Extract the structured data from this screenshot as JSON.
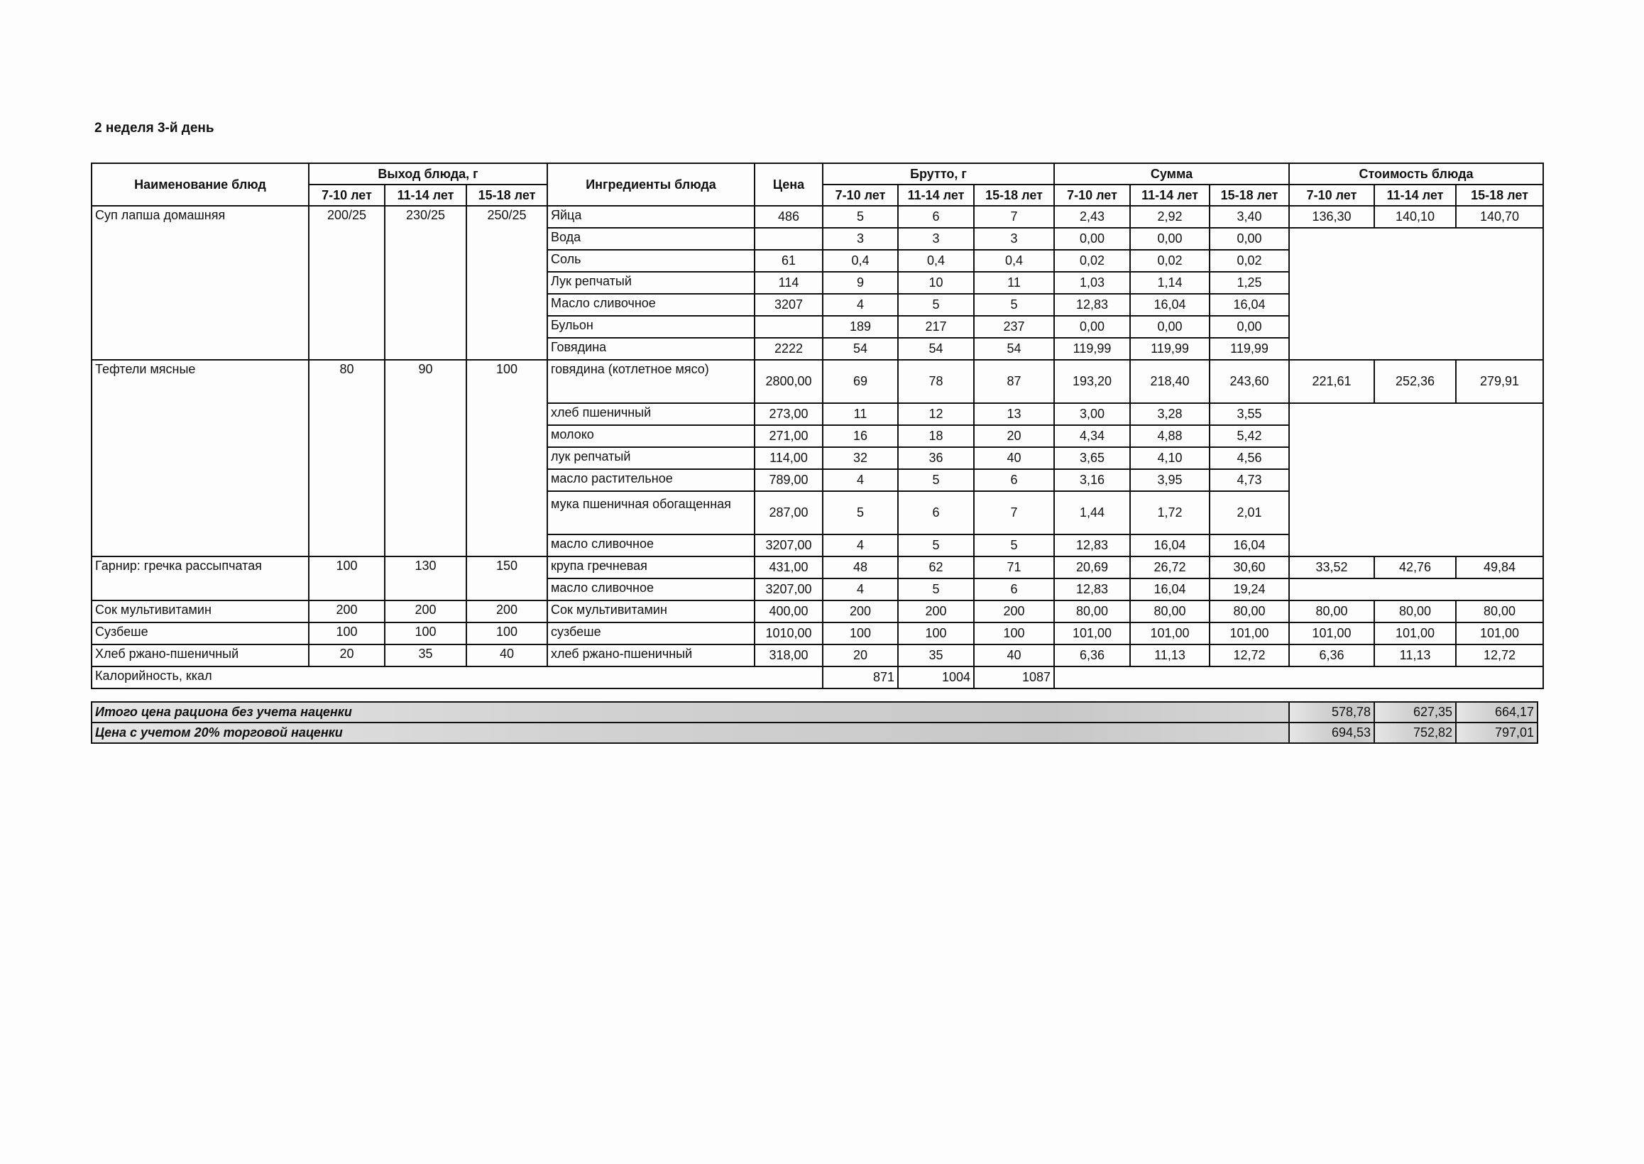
{
  "title": "2 неделя 3-й день",
  "headers": {
    "dish": "Наименование блюд",
    "yield": "Выход блюда, г",
    "ingredients": "Ингредиенты блюда",
    "price": "Цена",
    "brutto": "Брутто, г",
    "sum": "Сумма",
    "cost": "Стоимость блюда",
    "ages": [
      "7-10 лет",
      "11-14 лет",
      "15-18 лет"
    ]
  },
  "dishes": [
    {
      "name": "Суп лапша домашняя",
      "yields": [
        "200/25",
        "230/25",
        "250/25"
      ],
      "cost": [
        "136,30",
        "140,10",
        "140,70"
      ],
      "ingredients": [
        {
          "name": "Яйца",
          "price": "486",
          "brutto": [
            "5",
            "6",
            "7"
          ],
          "sum": [
            "2,43",
            "2,92",
            "3,40"
          ]
        },
        {
          "name": "Вода",
          "price": "",
          "brutto": [
            "3",
            "3",
            "3"
          ],
          "sum": [
            "0,00",
            "0,00",
            "0,00"
          ]
        },
        {
          "name": "Соль",
          "price": "61",
          "brutto": [
            "0,4",
            "0,4",
            "0,4"
          ],
          "sum": [
            "0,02",
            "0,02",
            "0,02"
          ]
        },
        {
          "name": "Лук репчатый",
          "price": "114",
          "brutto": [
            "9",
            "10",
            "11"
          ],
          "sum": [
            "1,03",
            "1,14",
            "1,25"
          ]
        },
        {
          "name": "Масло сливочное",
          "price": "3207",
          "brutto": [
            "4",
            "5",
            "5"
          ],
          "sum": [
            "12,83",
            "16,04",
            "16,04"
          ]
        },
        {
          "name": "Бульон",
          "price": "",
          "brutto": [
            "189",
            "217",
            "237"
          ],
          "sum": [
            "0,00",
            "0,00",
            "0,00"
          ]
        },
        {
          "name": "Говядина",
          "price": "2222",
          "brutto": [
            "54",
            "54",
            "54"
          ],
          "sum": [
            "119,99",
            "119,99",
            "119,99"
          ]
        }
      ]
    },
    {
      "name": "Тефтели мясные",
      "yields": [
        "80",
        "90",
        "100"
      ],
      "cost": [
        "221,61",
        "252,36",
        "279,91"
      ],
      "ingredients": [
        {
          "name": "говядина (котлетное мясо)",
          "price": "2800,00",
          "brutto": [
            "69",
            "78",
            "87"
          ],
          "sum": [
            "193,20",
            "218,40",
            "243,60"
          ],
          "tall": true
        },
        {
          "name": "хлеб пшеничный",
          "price": "273,00",
          "brutto": [
            "11",
            "12",
            "13"
          ],
          "sum": [
            "3,00",
            "3,28",
            "3,55"
          ]
        },
        {
          "name": "молоко",
          "price": "271,00",
          "brutto": [
            "16",
            "18",
            "20"
          ],
          "sum": [
            "4,34",
            "4,88",
            "5,42"
          ]
        },
        {
          "name": "лук репчатый",
          "price": "114,00",
          "brutto": [
            "32",
            "36",
            "40"
          ],
          "sum": [
            "3,65",
            "4,10",
            "4,56"
          ]
        },
        {
          "name": "масло растительное",
          "price": "789,00",
          "brutto": [
            "4",
            "5",
            "6"
          ],
          "sum": [
            "3,16",
            "3,95",
            "4,73"
          ]
        },
        {
          "name": "мука пшеничная обогащенная",
          "price": "287,00",
          "brutto": [
            "5",
            "6",
            "7"
          ],
          "sum": [
            "1,44",
            "1,72",
            "2,01"
          ],
          "tall": true,
          "wrap": true
        },
        {
          "name": "масло сливочное",
          "price": "3207,00",
          "brutto": [
            "4",
            "5",
            "5"
          ],
          "sum": [
            "12,83",
            "16,04",
            "16,04"
          ]
        }
      ]
    },
    {
      "name": "Гарнир: гречка рассыпчатая",
      "yields": [
        "100",
        "130",
        "150"
      ],
      "cost": [
        "33,52",
        "42,76",
        "49,84"
      ],
      "ingredients": [
        {
          "name": "крупа гречневая",
          "price": "431,00",
          "brutto": [
            "48",
            "62",
            "71"
          ],
          "sum": [
            "20,69",
            "26,72",
            "30,60"
          ]
        },
        {
          "name": "масло сливочное",
          "price": "3207,00",
          "brutto": [
            "4",
            "5",
            "6"
          ],
          "sum": [
            "12,83",
            "16,04",
            "19,24"
          ]
        }
      ]
    },
    {
      "name": "Сок мультивитамин",
      "yields": [
        "200",
        "200",
        "200"
      ],
      "cost": [
        "80,00",
        "80,00",
        "80,00"
      ],
      "ingredients": [
        {
          "name": "Сок мультивитамин",
          "price": "400,00",
          "brutto": [
            "200",
            "200",
            "200"
          ],
          "sum": [
            "80,00",
            "80,00",
            "80,00"
          ]
        }
      ]
    },
    {
      "name": "Сузбеше",
      "yields": [
        "100",
        "100",
        "100"
      ],
      "cost": [
        "101,00",
        "101,00",
        "101,00"
      ],
      "ingredients": [
        {
          "name": "сузбеше",
          "price": "1010,00",
          "brutto": [
            "100",
            "100",
            "100"
          ],
          "sum": [
            "101,00",
            "101,00",
            "101,00"
          ]
        }
      ]
    },
    {
      "name": "Хлеб ржано-пшеничный",
      "yields": [
        "20",
        "35",
        "40"
      ],
      "cost": [
        "6,36",
        "11,13",
        "12,72"
      ],
      "ingredients": [
        {
          "name": "хлеб ржано-пшеничный",
          "price": "318,00",
          "brutto": [
            "20",
            "35",
            "40"
          ],
          "sum": [
            "6,36",
            "11,13",
            "12,72"
          ]
        }
      ]
    }
  ],
  "calories": {
    "label": "Калорийность, ккал",
    "values": [
      "871",
      "1004",
      "1087"
    ]
  },
  "totals": [
    {
      "label": "Итого цена рациона без учета наценки",
      "values": [
        "578,78",
        "627,35",
        "664,17"
      ]
    },
    {
      "label": "Цена с учетом 20% торговой наценки",
      "values": [
        "694,53",
        "752,82",
        "797,01"
      ]
    }
  ]
}
